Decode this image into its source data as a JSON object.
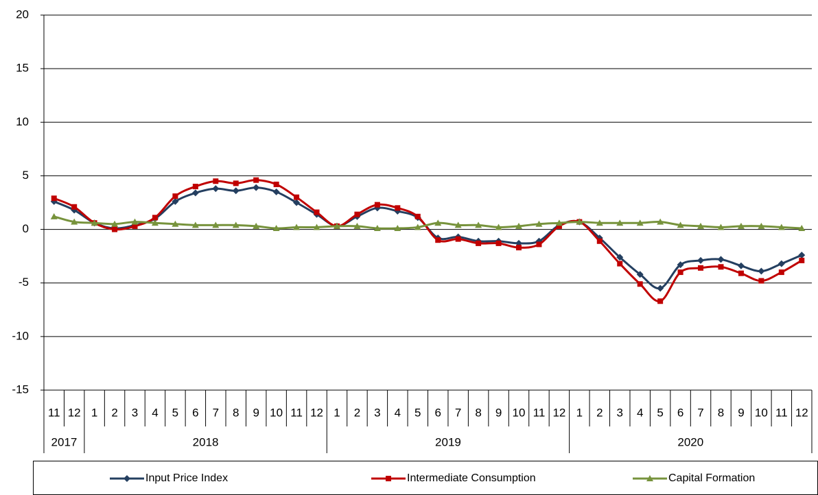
{
  "chart_data": {
    "type": "line",
    "categories": [
      "11",
      "12",
      "1",
      "2",
      "3",
      "4",
      "5",
      "6",
      "7",
      "8",
      "9",
      "10",
      "11",
      "12",
      "1",
      "2",
      "3",
      "4",
      "5",
      "6",
      "7",
      "8",
      "9",
      "10",
      "11",
      "12",
      "1",
      "2",
      "3",
      "4",
      "5",
      "6",
      "7",
      "8",
      "9",
      "10",
      "11",
      "12"
    ],
    "year_labels": [
      "2017",
      "2018",
      "2019",
      "2020"
    ],
    "series": [
      {
        "name": "Input Price Index",
        "color": "#243f60",
        "marker": "diamond",
        "values": [
          2.6,
          1.8,
          0.6,
          0.1,
          0.4,
          1.0,
          2.6,
          3.4,
          3.8,
          3.6,
          3.9,
          3.5,
          2.5,
          1.4,
          0.3,
          1.2,
          2.0,
          1.7,
          1.1,
          -0.8,
          -0.7,
          -1.1,
          -1.1,
          -1.3,
          -1.1,
          0.4,
          0.7,
          -0.8,
          -2.6,
          -4.2,
          -5.5,
          -3.3,
          -2.9,
          -2.8,
          -3.4,
          -3.9,
          -3.2,
          -2.4
        ]
      },
      {
        "name": "Intermediate Consumption",
        "color": "#c00000",
        "marker": "square",
        "values": [
          2.9,
          2.1,
          0.6,
          0.0,
          0.3,
          1.1,
          3.1,
          4.0,
          4.5,
          4.3,
          4.6,
          4.2,
          3.0,
          1.6,
          0.3,
          1.4,
          2.3,
          2.0,
          1.2,
          -1.0,
          -0.9,
          -1.3,
          -1.3,
          -1.7,
          -1.4,
          0.3,
          0.7,
          -1.1,
          -3.2,
          -5.1,
          -6.7,
          -4.0,
          -3.6,
          -3.5,
          -4.1,
          -4.8,
          -4.0,
          -2.9
        ]
      },
      {
        "name": "Capital Formation",
        "color": "#77933c",
        "marker": "triangle",
        "values": [
          1.2,
          0.7,
          0.6,
          0.5,
          0.7,
          0.6,
          0.5,
          0.4,
          0.4,
          0.4,
          0.3,
          0.1,
          0.2,
          0.2,
          0.3,
          0.3,
          0.1,
          0.1,
          0.2,
          0.6,
          0.4,
          0.4,
          0.2,
          0.3,
          0.5,
          0.6,
          0.7,
          0.6,
          0.6,
          0.6,
          0.7,
          0.4,
          0.3,
          0.2,
          0.3,
          0.3,
          0.2,
          0.1
        ]
      }
    ],
    "ylim": [
      -15,
      20
    ],
    "yticks": [
      -15,
      -10,
      -5,
      0,
      5,
      10,
      15,
      20
    ],
    "grid": true,
    "legend": "bottom"
  }
}
